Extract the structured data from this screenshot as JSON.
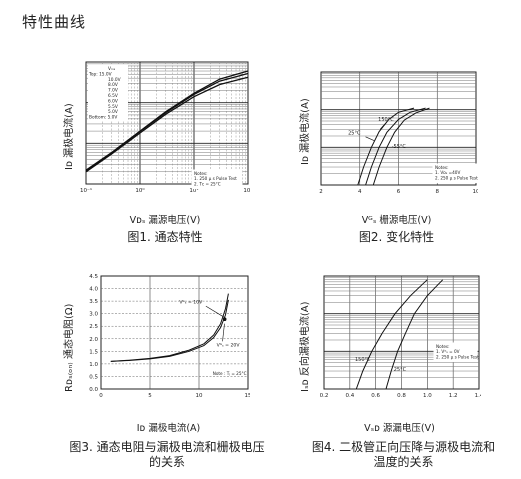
{
  "page_title": "特性曲线",
  "chart_data": [
    {
      "type": "line",
      "caption": "图1. 通态特性",
      "xlabel": "Vᴅₛ 漏源电压(V)",
      "ylabel": "Iᴅ 漏极电流(A)",
      "x_scale": "log",
      "y_scale": "log",
      "xlim": [
        0.1,
        100
      ],
      "ylim": [
        0.1,
        100
      ],
      "x_ticks": [
        "10⁻¹",
        "10⁰",
        "10¹",
        "10²"
      ],
      "legend_lines": [
        "Vₘₛ",
        "Top:  15.0V",
        "10.0V",
        "8.0V",
        "7.0V",
        "6.5V",
        "6.0V",
        "5.5V",
        "5.0V",
        "Bottom: 5.0V"
      ],
      "notes": [
        "Notes:",
        "1. 250 μ s Pulse Test",
        "2. Tᴄ = 25°C"
      ],
      "series": [
        {
          "name": "15.0V",
          "x": [
            0.1,
            0.3,
            1,
            3,
            10,
            30,
            100
          ],
          "y": [
            0.22,
            0.6,
            2.0,
            6.0,
            17,
            38,
            60
          ]
        },
        {
          "name": "10.0V",
          "x": [
            0.1,
            0.3,
            1,
            3,
            10,
            30,
            100
          ],
          "y": [
            0.21,
            0.58,
            1.95,
            5.7,
            16,
            34,
            52
          ]
        },
        {
          "name": "5.0V",
          "x": [
            0.1,
            0.3,
            1,
            3,
            10,
            30,
            100
          ],
          "y": [
            0.2,
            0.55,
            1.8,
            5.2,
            14,
            28,
            42
          ]
        }
      ]
    },
    {
      "type": "line",
      "caption": "图2. 变化特性",
      "xlabel": "Vᴳₛ 栅源电压(V)",
      "ylabel": "Iᴅ 漏极电流(A)",
      "x_scale": "linear",
      "y_scale": "log",
      "xlim": [
        2,
        10
      ],
      "ylim": [
        0.1,
        100
      ],
      "x_ticks": [
        "2",
        "4",
        "6",
        "8",
        "10"
      ],
      "annotations": [
        "150°C",
        "25°C",
        "-55°C"
      ],
      "notes": [
        "Notes:",
        "1. Vᴅₛ =40V",
        "2. 250 μ s Pulse Test"
      ],
      "series": [
        {
          "name": "150°C",
          "x": [
            3.9,
            4.2,
            4.6,
            5.0,
            5.5,
            6.0,
            6.8
          ],
          "y": [
            0.1,
            0.3,
            1.0,
            2.6,
            5.5,
            8.5,
            11
          ]
        },
        {
          "name": "25°C",
          "x": [
            4.3,
            4.6,
            5.0,
            5.4,
            6.0,
            6.6,
            7.4
          ],
          "y": [
            0.1,
            0.3,
            1.0,
            2.5,
            5.5,
            8.5,
            11
          ]
        },
        {
          "name": "-55°C",
          "x": [
            4.7,
            5.0,
            5.4,
            5.8,
            6.3,
            6.9,
            7.6
          ],
          "y": [
            0.1,
            0.3,
            1.0,
            2.5,
            5.3,
            8.2,
            11
          ]
        }
      ]
    },
    {
      "type": "line",
      "caption": "图3. 通态电阻与漏极电流和栅极电压的关系",
      "xlabel": "Iᴅ 漏极电流(A)",
      "ylabel": "Rᴅₛ₍ₒₙ₎ 通态电阻(Ω)",
      "x_scale": "linear",
      "y_scale": "linear",
      "xlim": [
        0,
        15
      ],
      "ylim": [
        0,
        4.5
      ],
      "x_ticks": [
        "0",
        "5",
        "10",
        "15"
      ],
      "y_ticks": [
        "0.0",
        "0.5",
        "1.0",
        "1.5",
        "2.0",
        "2.5",
        "3.0",
        "3.5",
        "4.0",
        "4.5"
      ],
      "annotations": [
        "Vᴳₛ = 10V",
        "Vᴳₛ = 20V"
      ],
      "notes": [
        "Note : Tⱼ = 25°C"
      ],
      "series": [
        {
          "name": "Vᴳₛ = 10V",
          "x": [
            1,
            3,
            5,
            7,
            9,
            10.5,
            11.5,
            12.2,
            12.7,
            13.0
          ],
          "y": [
            1.1,
            1.15,
            1.22,
            1.33,
            1.55,
            1.8,
            2.15,
            2.6,
            3.2,
            3.8
          ]
        },
        {
          "name": "Vᴳₛ = 20V",
          "x": [
            1,
            3,
            5,
            7,
            9,
            10.5,
            11.5,
            12.2,
            12.7,
            13.0
          ],
          "y": [
            1.1,
            1.14,
            1.2,
            1.3,
            1.5,
            1.73,
            2.05,
            2.45,
            2.95,
            3.55
          ]
        }
      ]
    },
    {
      "type": "line",
      "caption": "图4. 二极管正向压降与源极电流和温度的关系",
      "xlabel": "Vₛᴅ 源漏电压(V)",
      "ylabel": "Iₛᴅ 反向漏极电流(A)",
      "x_scale": "linear",
      "y_scale": "log",
      "xlim": [
        0.2,
        1.4
      ],
      "ylim": [
        0.1,
        100
      ],
      "x_ticks": [
        "0.2",
        "0.4",
        "0.6",
        "0.8",
        "1.0",
        "1.2",
        "1.4"
      ],
      "annotations": [
        "150°C",
        "25°C"
      ],
      "notes": [
        "Notes:",
        "1. Vᴳₛ = 0V",
        "2. 250 μ s Pulse Test"
      ],
      "series": [
        {
          "name": "150°C",
          "x": [
            0.45,
            0.5,
            0.57,
            0.65,
            0.75,
            0.87,
            1.0
          ],
          "y": [
            0.1,
            0.3,
            1.0,
            3.0,
            10,
            30,
            80
          ]
        },
        {
          "name": "25°C",
          "x": [
            0.68,
            0.72,
            0.77,
            0.83,
            0.9,
            1.0,
            1.12
          ],
          "y": [
            0.1,
            0.3,
            1.0,
            3.0,
            10,
            30,
            80
          ]
        }
      ]
    }
  ]
}
